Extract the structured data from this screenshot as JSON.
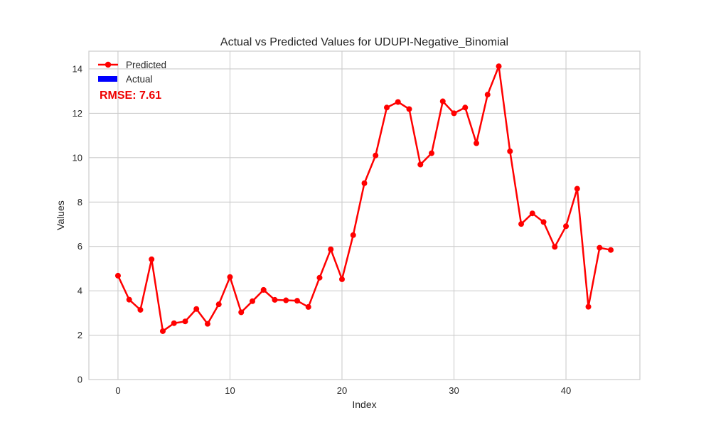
{
  "chart_data": {
    "type": "line",
    "title": "Actual vs Predicted Values for UDUPI-Negative_Binomial",
    "xlabel": "Index",
    "ylabel": "Values",
    "xlim": [
      -2.6,
      46.6
    ],
    "ylim": [
      0,
      14.8
    ],
    "xticks": [
      0,
      10,
      20,
      30,
      40
    ],
    "yticks": [
      0,
      2,
      4,
      6,
      8,
      10,
      12,
      14
    ],
    "grid": true,
    "legend_position": "top-left",
    "series": [
      {
        "name": "Predicted",
        "color": "#ff0000",
        "marker": "circle",
        "x": [
          0,
          1,
          2,
          3,
          4,
          5,
          6,
          7,
          8,
          9,
          10,
          11,
          12,
          13,
          14,
          15,
          16,
          17,
          18,
          19,
          20,
          21,
          22,
          23,
          24,
          25,
          26,
          27,
          28,
          29,
          30,
          31,
          32,
          33,
          34,
          35,
          36,
          37,
          38,
          39,
          40,
          41,
          42,
          43,
          44
        ],
        "y": [
          4.68,
          3.6,
          3.14,
          5.42,
          2.18,
          2.54,
          2.62,
          3.18,
          2.51,
          3.39,
          4.62,
          3.03,
          3.53,
          4.04,
          3.59,
          3.57,
          3.55,
          3.27,
          4.59,
          5.87,
          4.52,
          6.51,
          8.85,
          10.1,
          12.26,
          12.51,
          12.19,
          9.69,
          10.2,
          12.54,
          12.0,
          12.26,
          10.65,
          12.84,
          14.12,
          10.29,
          7.01,
          7.49,
          7.1,
          5.98,
          6.91,
          8.6,
          3.28,
          5.94,
          5.84
        ]
      },
      {
        "name": "Actual",
        "color": "#0000ff",
        "marker": "bar",
        "x": [],
        "y": []
      }
    ],
    "annotations": [
      {
        "text": "RMSE: 7.61",
        "color": "#ee0000",
        "position": "top-left"
      }
    ]
  }
}
